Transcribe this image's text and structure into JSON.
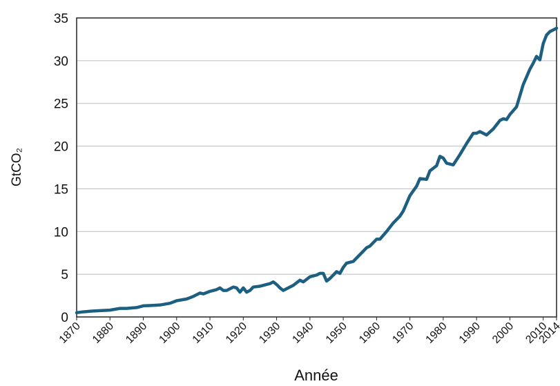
{
  "chart_data": {
    "type": "line",
    "y_label": "GtCO₂",
    "x_label": "Année",
    "x": [
      1870,
      1872,
      1875,
      1880,
      1883,
      1885,
      1888,
      1890,
      1893,
      1895,
      1898,
      1900,
      1903,
      1905,
      1907,
      1908,
      1910,
      1912,
      1913,
      1914,
      1915,
      1917,
      1918,
      1919,
      1920,
      1921,
      1922,
      1923,
      1925,
      1927,
      1928,
      1929,
      1930,
      1931,
      1932,
      1933,
      1935,
      1937,
      1938,
      1940,
      1942,
      1943,
      1944,
      1945,
      1946,
      1948,
      1949,
      1950,
      1951,
      1953,
      1955,
      1957,
      1958,
      1960,
      1961,
      1963,
      1965,
      1967,
      1968,
      1970,
      1972,
      1973,
      1975,
      1976,
      1978,
      1979,
      1980,
      1981,
      1983,
      1985,
      1987,
      1989,
      1990,
      1991,
      1993,
      1995,
      1997,
      1998,
      1999,
      2000,
      2002,
      2004,
      2006,
      2007,
      2008,
      2009,
      2010,
      2011,
      2012,
      2013,
      2014
    ],
    "series": [
      {
        "name": "CO2",
        "color": "#1d5f80",
        "values": [
          0.5,
          0.6,
          0.7,
          0.8,
          1.0,
          1.0,
          1.1,
          1.3,
          1.35,
          1.4,
          1.6,
          1.9,
          2.1,
          2.4,
          2.8,
          2.7,
          3.0,
          3.2,
          3.4,
          3.1,
          3.1,
          3.5,
          3.4,
          2.9,
          3.4,
          2.9,
          3.1,
          3.5,
          3.6,
          3.8,
          3.9,
          4.1,
          3.8,
          3.4,
          3.1,
          3.3,
          3.7,
          4.3,
          4.1,
          4.7,
          4.9,
          5.1,
          5.1,
          4.2,
          4.5,
          5.3,
          5.1,
          5.8,
          6.3,
          6.5,
          7.3,
          8.1,
          8.3,
          9.1,
          9.1,
          10.0,
          11.0,
          11.8,
          12.4,
          14.2,
          15.3,
          16.2,
          16.1,
          17.1,
          17.7,
          18.8,
          18.6,
          18.0,
          17.8,
          19.0,
          20.3,
          21.5,
          21.5,
          21.7,
          21.3,
          22.0,
          23.0,
          23.2,
          23.1,
          23.7,
          24.6,
          27.2,
          29.0,
          29.7,
          30.5,
          30.1,
          32.0,
          33.0,
          33.4,
          33.6,
          33.8
        ]
      }
    ],
    "xlim": [
      1870,
      2014
    ],
    "xticks": [
      1870,
      1880,
      1890,
      1900,
      1910,
      1920,
      1930,
      1940,
      1950,
      1960,
      1970,
      1980,
      1990,
      2000,
      2010,
      2014
    ],
    "ylim": [
      0,
      35
    ],
    "yticks": [
      0,
      5,
      10,
      15,
      20,
      25,
      30,
      35
    ],
    "grid": true
  }
}
